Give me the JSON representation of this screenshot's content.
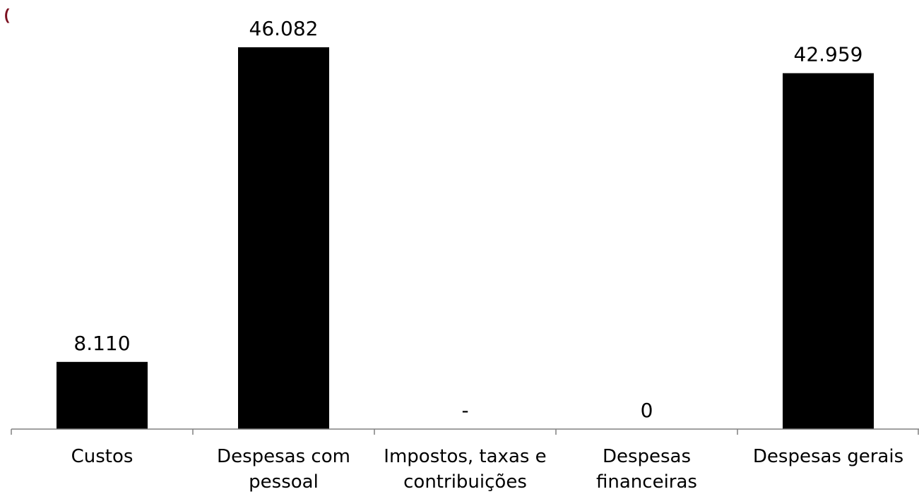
{
  "corner_mark": "(",
  "colors": {
    "bar": "#000000",
    "axis": "#808080",
    "corner_mark": "#7b1020"
  },
  "chart_data": {
    "type": "bar",
    "categories": [
      [
        "Custos"
      ],
      [
        "Despesas com",
        "pessoal"
      ],
      [
        "Impostos, taxas e",
        "contribuições"
      ],
      [
        "Despesas",
        "financeiras"
      ],
      [
        "Despesas gerais"
      ]
    ],
    "values": [
      8110,
      46082,
      0,
      0,
      42959
    ],
    "data_labels": [
      "8.110",
      "46.082",
      "-",
      "0",
      "42.959"
    ],
    "title": "",
    "xlabel": "",
    "ylabel": "",
    "ylim": [
      0,
      46082
    ],
    "grid": false,
    "legend": "none"
  }
}
